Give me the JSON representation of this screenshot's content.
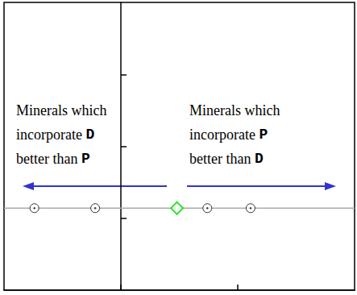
{
  "chart_data": {
    "type": "scatter",
    "xlim": [
      -1,
      2
    ],
    "xticks": [
      0,
      1
    ],
    "ylim": [
      0,
      4
    ],
    "yticks": [
      1,
      2,
      3
    ],
    "tick_labels": false,
    "grid": false,
    "annotations": [
      "Minerals which\nincorporate D\nbetter than P",
      "Minerals which\nincorporate P\nbetter than D"
    ],
    "series": [
      {
        "type": "line",
        "color": "#aaaaaa",
        "marker": "none",
        "x": [
          -1,
          2
        ],
        "values": [
          1.14,
          1.14
        ]
      },
      {
        "type": "scatter",
        "color": "#000000",
        "marker": "circled-dot",
        "x": [
          -0.74,
          -0.22,
          0.74,
          1.11
        ],
        "values": [
          1.14,
          1.14,
          1.14,
          1.14
        ]
      },
      {
        "type": "scatter",
        "color": "#00dd00",
        "marker": "diamond",
        "x": [
          0.48
        ],
        "values": [
          1.14
        ]
      }
    ]
  }
}
